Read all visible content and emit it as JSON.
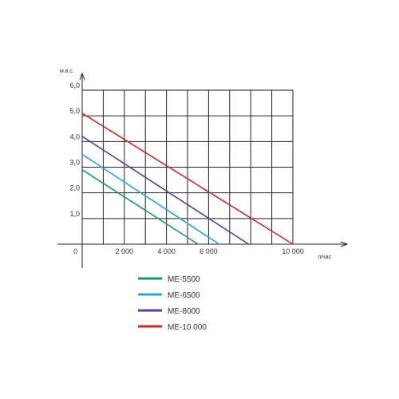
{
  "chart_data": {
    "type": "line",
    "ylabel": "м.в.с.",
    "xlabel": "л/час",
    "xlim": [
      0,
      10000
    ],
    "ylim": [
      0,
      6
    ],
    "grid": true,
    "x_ticks": [
      {
        "value": 0,
        "label": "0"
      },
      {
        "value": 2000,
        "label": "2 000"
      },
      {
        "value": 4000,
        "label": "4 000"
      },
      {
        "value": 6000,
        "label": "6 000"
      },
      {
        "value": 10000,
        "label": "10 000"
      }
    ],
    "y_ticks": [
      {
        "value": 1,
        "label": "1,0"
      },
      {
        "value": 2,
        "label": "2,0"
      },
      {
        "value": 3,
        "label": "3,0"
      },
      {
        "value": 4,
        "label": "4,0"
      },
      {
        "value": 5,
        "label": "5,0"
      },
      {
        "value": 6,
        "label": "6,0"
      }
    ],
    "series": [
      {
        "name": "ME-5500",
        "color": "#1a9a62",
        "points": [
          [
            0,
            2.9
          ],
          [
            5500,
            0
          ]
        ]
      },
      {
        "name": "ME-6500",
        "color": "#2ba6d8",
        "points": [
          [
            0,
            3.5
          ],
          [
            6500,
            0
          ]
        ]
      },
      {
        "name": "ME-8000",
        "color": "#5a3a9a",
        "points": [
          [
            0,
            4.2
          ],
          [
            7900,
            0
          ]
        ]
      },
      {
        "name": "ME-10 000",
        "color": "#cc2a25",
        "points": [
          [
            0,
            5.1
          ],
          [
            10000,
            0
          ]
        ]
      }
    ],
    "legend_position": "bottom-left"
  }
}
